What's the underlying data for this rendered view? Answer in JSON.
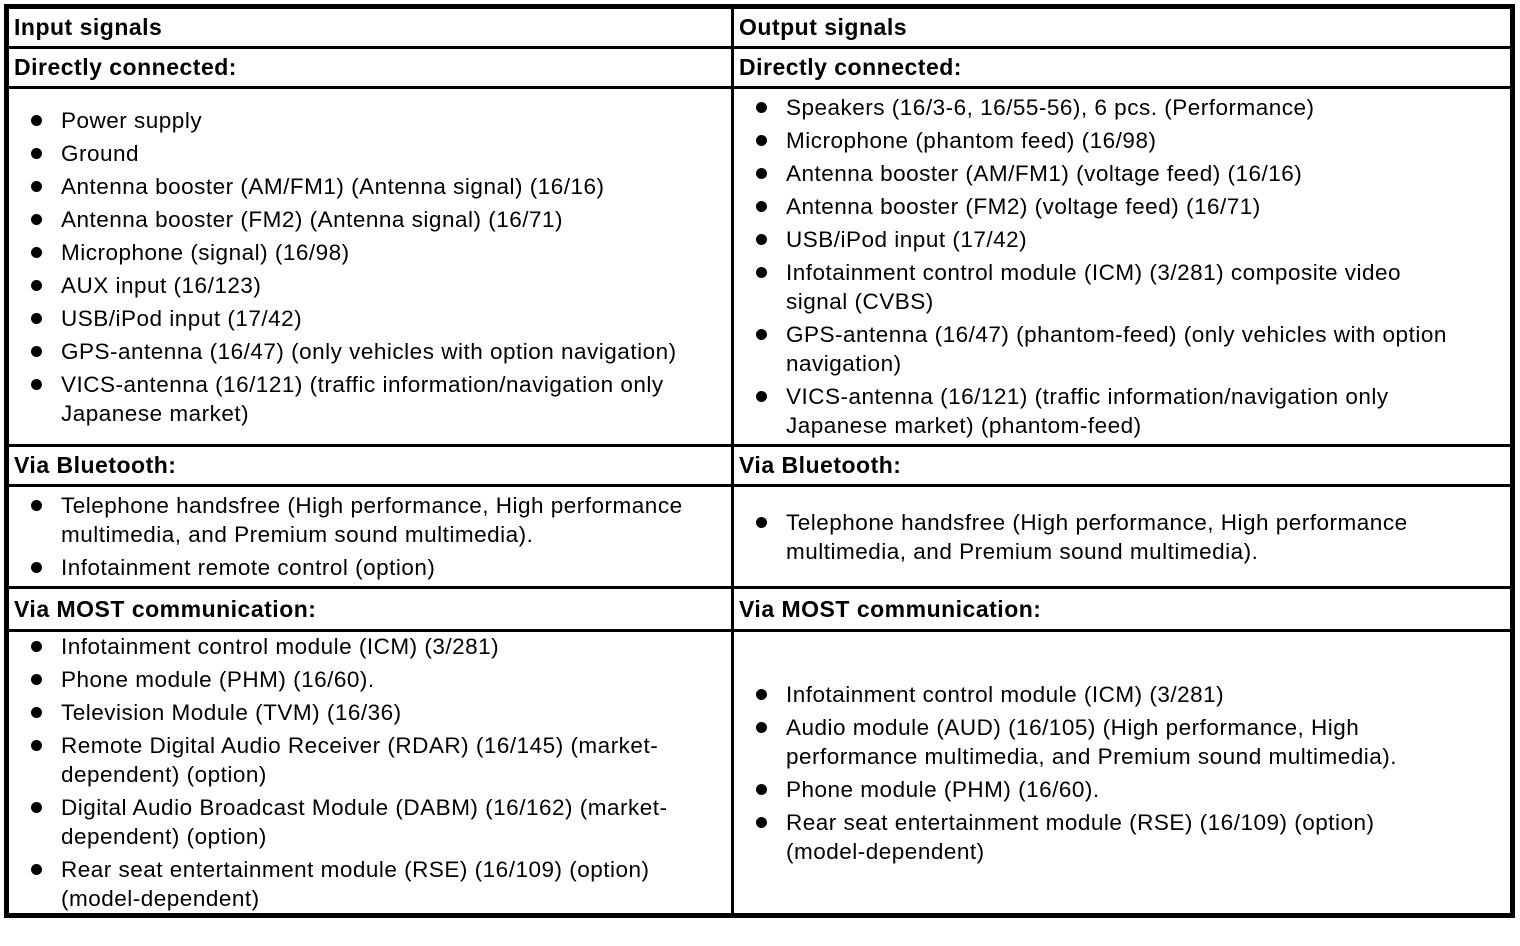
{
  "colors": {
    "background": "#ffffff",
    "text": "#000000",
    "border": "#000000"
  },
  "table": {
    "columns": [
      {
        "title": "Input signals",
        "sections": [
          {
            "heading": "Directly connected:",
            "items": [
              "Power supply",
              "Ground",
              "Antenna booster (AM/FM1) (Antenna signal) (16/16)",
              "Antenna booster (FM2) (Antenna signal) (16/71)",
              "Microphone (signal) (16/98)",
              "AUX input (16/123)",
              "USB/iPod input (17/42)",
              "GPS-antenna (16/47) (only vehicles with option navigation)",
              "VICS-antenna (16/121) (traffic information/navigation only Japanese market)"
            ]
          },
          {
            "heading": "Via Bluetooth:",
            "items": [
              "Telephone handsfree (High performance, High performance multimedia, and Premium sound multimedia).",
              "Infotainment remote control (option)"
            ]
          },
          {
            "heading": "Via MOST communication:",
            "items": [
              "Infotainment control module (ICM) (3/281)",
              "Phone module (PHM) (16/60).",
              "Television Module (TVM) (16/36)",
              "Remote Digital Audio Receiver (RDAR) (16/145) (market-dependent) (option)",
              "Digital Audio Broadcast Module (DABM) (16/162) (market-dependent) (option)",
              "Rear seat entertainment module (RSE) (16/109) (option) (model-dependent)"
            ]
          }
        ]
      },
      {
        "title": "Output signals",
        "sections": [
          {
            "heading": "Directly connected:",
            "items": [
              "Speakers (16/3-6, 16/55-56), 6 pcs. (Performance)",
              "Microphone (phantom feed) (16/98)",
              "Antenna booster (AM/FM1) (voltage feed) (16/16)",
              "Antenna booster (FM2) (voltage feed) (16/71)",
              "USB/iPod input (17/42)",
              "Infotainment control module (ICM) (3/281) composite video signal (CVBS)",
              "GPS-antenna (16/47) (phantom-feed) (only vehicles with option navigation)",
              "VICS-antenna (16/121) (traffic information/navigation only Japanese market) (phantom-feed)"
            ]
          },
          {
            "heading": "Via Bluetooth:",
            "items": [
              "Telephone handsfree (High performance, High performance multimedia, and Premium sound multimedia)."
            ]
          },
          {
            "heading": "Via MOST communication:",
            "items": [
              "Infotainment control module (ICM) (3/281)",
              "Audio module (AUD) (16/105) (High performance, High performance multimedia, and Premium sound multimedia).",
              "Phone module (PHM) (16/60).",
              "Rear seat entertainment module (RSE) (16/109) (option) (model-dependent)"
            ]
          }
        ]
      }
    ]
  }
}
